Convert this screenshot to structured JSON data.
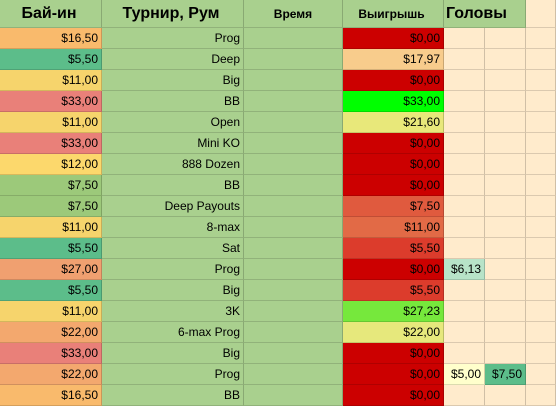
{
  "headers": {
    "buyin": "Бай-ин",
    "tournament": "Турнир, Рум",
    "time": "Время",
    "winnings": "Выигрышь",
    "heads": "Головы"
  },
  "colors": {
    "header_bg": "#a9d08e",
    "name_bg": "#a9d08e",
    "empty_bg": "#ffebcc"
  },
  "rows": [
    {
      "buyin": "$16,50",
      "buyin_color": "#f9ba6c",
      "tournament": "Prog",
      "win": "$0,00",
      "win_color": "#cc0000",
      "h1": "",
      "h1_color": "",
      "h2": "",
      "h2_color": ""
    },
    {
      "buyin": "$5,50",
      "buyin_color": "#5cbd8a",
      "tournament": "Deep",
      "win": "$17,97",
      "win_color": "#f8cc8c",
      "h1": "",
      "h1_color": "",
      "h2": "",
      "h2_color": ""
    },
    {
      "buyin": "$11,00",
      "buyin_color": "#f6d46c",
      "tournament": "Big",
      "win": "$0,00",
      "win_color": "#cc0000",
      "h1": "",
      "h1_color": "",
      "h2": "",
      "h2_color": ""
    },
    {
      "buyin": "$33,00",
      "buyin_color": "#e98079",
      "tournament": "BB",
      "win": "$33,00",
      "win_color": "#00ff00",
      "h1": "",
      "h1_color": "",
      "h2": "",
      "h2_color": ""
    },
    {
      "buyin": "$11,00",
      "buyin_color": "#f6d46c",
      "tournament": "Open",
      "win": "$21,60",
      "win_color": "#e8e87a",
      "h1": "",
      "h1_color": "",
      "h2": "",
      "h2_color": ""
    },
    {
      "buyin": "$33,00",
      "buyin_color": "#e98079",
      "tournament": "Mini KO",
      "win": "$0,00",
      "win_color": "#cc0000",
      "h1": "",
      "h1_color": "",
      "h2": "",
      "h2_color": ""
    },
    {
      "buyin": "$12,00",
      "buyin_color": "#fcd86c",
      "tournament": "888 Dozen",
      "win": "$0,00",
      "win_color": "#cc0000",
      "h1": "",
      "h1_color": "",
      "h2": "",
      "h2_color": ""
    },
    {
      "buyin": "$7,50",
      "buyin_color": "#9cc97a",
      "tournament": "BB",
      "win": "$0,00",
      "win_color": "#cc0000",
      "h1": "",
      "h1_color": "",
      "h2": "",
      "h2_color": ""
    },
    {
      "buyin": "$7,50",
      "buyin_color": "#9cc97a",
      "tournament": "Deep Payouts",
      "win": "$7,50",
      "win_color": "#e05a3e",
      "h1": "",
      "h1_color": "",
      "h2": "",
      "h2_color": ""
    },
    {
      "buyin": "$11,00",
      "buyin_color": "#f6d46c",
      "tournament": "8-max",
      "win": "$11,00",
      "win_color": "#e26a46",
      "h1": "",
      "h1_color": "",
      "h2": "",
      "h2_color": ""
    },
    {
      "buyin": "$5,50",
      "buyin_color": "#5cbd8a",
      "tournament": "Sat",
      "win": "$5,50",
      "win_color": "#dc3c2c",
      "h1": "",
      "h1_color": "",
      "h2": "",
      "h2_color": ""
    },
    {
      "buyin": "$27,00",
      "buyin_color": "#f0a070",
      "tournament": "Prog",
      "win": "$0,00",
      "win_color": "#cc0000",
      "h1": "$6,13",
      "h1_color": "#b7e3c8",
      "h2": "",
      "h2_color": ""
    },
    {
      "buyin": "$5,50",
      "buyin_color": "#5cbd8a",
      "tournament": "Big",
      "win": "$5,50",
      "win_color": "#dc3c2c",
      "h1": "",
      "h1_color": "",
      "h2": "",
      "h2_color": ""
    },
    {
      "buyin": "$11,00",
      "buyin_color": "#f6d46c",
      "tournament": "3K",
      "win": "$27,23",
      "win_color": "#76e83c",
      "h1": "",
      "h1_color": "",
      "h2": "",
      "h2_color": ""
    },
    {
      "buyin": "$22,00",
      "buyin_color": "#f3a86e",
      "tournament": "6-max Prog",
      "win": "$22,00",
      "win_color": "#e6e87c",
      "h1": "",
      "h1_color": "",
      "h2": "",
      "h2_color": ""
    },
    {
      "buyin": "$33,00",
      "buyin_color": "#e98079",
      "tournament": "Big",
      "win": "$0,00",
      "win_color": "#cc0000",
      "h1": "",
      "h1_color": "",
      "h2": "",
      "h2_color": ""
    },
    {
      "buyin": "$22,00",
      "buyin_color": "#f3a86e",
      "tournament": "Prog",
      "win": "$0,00",
      "win_color": "#cc0000",
      "h1": "$5,00",
      "h1_color": "#ffffcc",
      "h2": "$7,50",
      "h2_color": "#5cbd8a"
    },
    {
      "buyin": "$16,50",
      "buyin_color": "#f9ba6c",
      "tournament": "BB",
      "win": "$0,00",
      "win_color": "#cc0000",
      "h1": "",
      "h1_color": "",
      "h2": "",
      "h2_color": ""
    }
  ]
}
